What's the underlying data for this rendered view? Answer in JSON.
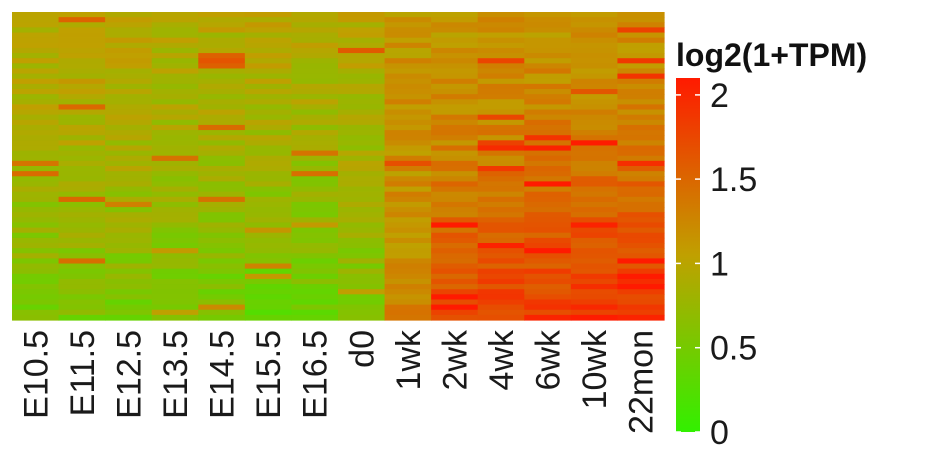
{
  "chart_data": {
    "type": "heatmap",
    "title": "",
    "xlabel": "",
    "ylabel": "",
    "columns": [
      "E10.5",
      "E11.5",
      "E12.5",
      "E13.5",
      "E14.5",
      "E15.5",
      "E16.5",
      "d0",
      "1wk",
      "2wk",
      "4wk",
      "6wk",
      "10wk",
      "22mon"
    ],
    "row_count": 60,
    "value_range": [
      0,
      2.1
    ],
    "colorscale": {
      "low": "#32f000",
      "mid": "#c0a000",
      "high": "#ff1a00"
    },
    "legend": {
      "title": "log2(1+TPM)",
      "ticks": [
        {
          "value": 2,
          "label": "2"
        },
        {
          "value": 1.5,
          "label": "1.5"
        },
        {
          "value": 1,
          "label": "1"
        },
        {
          "value": 0.5,
          "label": "0.5"
        },
        {
          "value": 0,
          "label": "0"
        }
      ],
      "placement": "right"
    },
    "column_profiles": {
      "E10.5": [
        0.95,
        0.55
      ],
      "E11.5": [
        1.0,
        0.55
      ],
      "E12.5": [
        1.0,
        0.5
      ],
      "E13.5": [
        0.95,
        0.45
      ],
      "E14.5": [
        0.95,
        0.45
      ],
      "E15.5": [
        0.95,
        0.4
      ],
      "E16.5": [
        0.95,
        0.4
      ],
      "d0": [
        0.95,
        0.55
      ],
      "1wk": [
        1.15,
        1.25
      ],
      "2wk": [
        1.1,
        1.75
      ],
      "4wk": [
        1.15,
        1.8
      ],
      "6wk": [
        1.15,
        1.85
      ],
      "10wk": [
        1.1,
        1.95
      ],
      "22mon": [
        1.15,
        1.95
      ]
    }
  }
}
